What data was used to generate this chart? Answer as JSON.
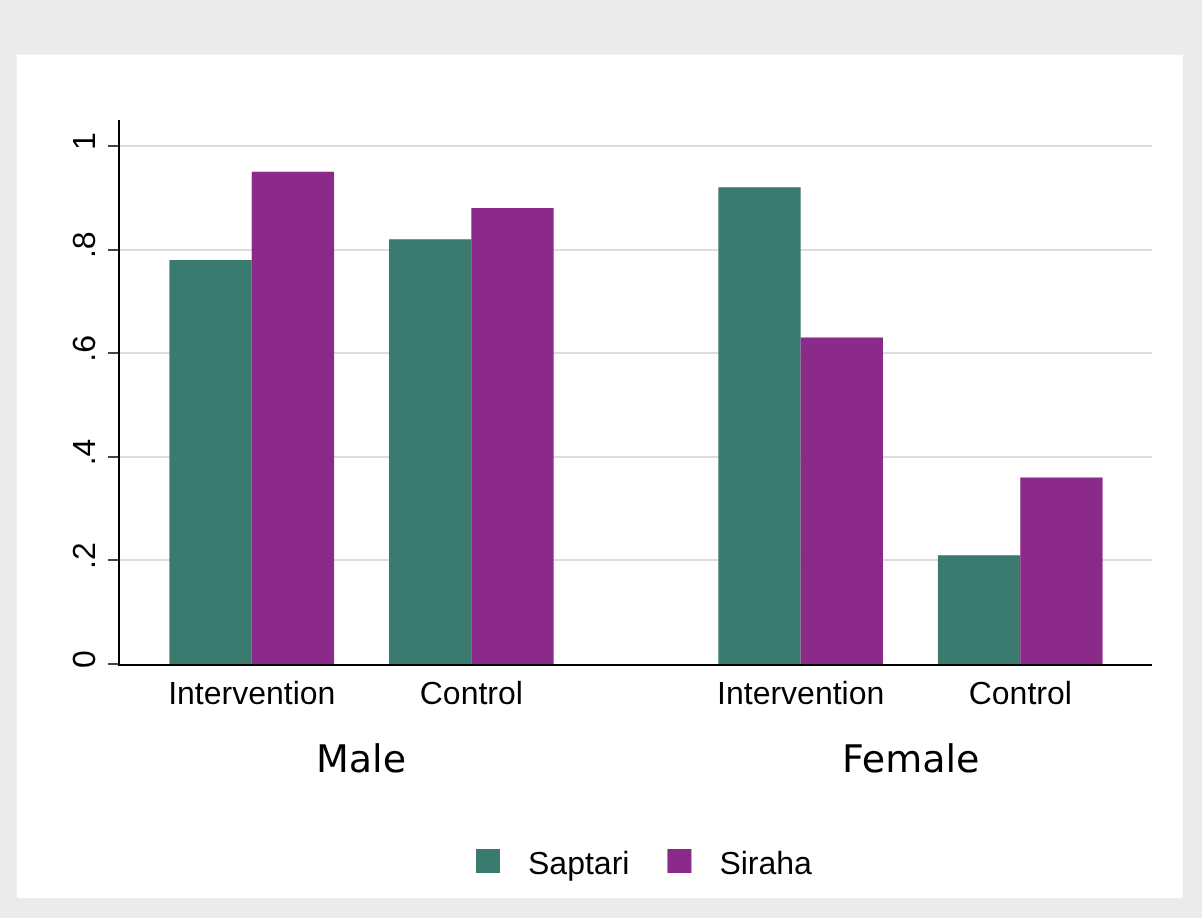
{
  "chart_data": {
    "type": "bar",
    "categories": [
      "Intervention",
      "Control",
      "Intervention",
      "Control"
    ],
    "series": [
      {
        "name": "Saptari",
        "color": "#3b7a6f",
        "values": [
          0.78,
          0.82,
          0.92,
          0.21
        ]
      },
      {
        "name": "Siraha",
        "color": "#8b2a88",
        "values": [
          0.95,
          0.88,
          0.63,
          0.36
        ]
      }
    ],
    "annotations": [
      "Male",
      "Female"
    ],
    "ylim": [
      0,
      1.05
    ],
    "yticks": [
      0,
      {
        "value": 0.2,
        "label": ".2"
      },
      {
        "value": 0.4,
        "label": ".4"
      },
      {
        "value": 0.6,
        "label": ".6"
      },
      {
        "value": 0.8,
        "label": ".8"
      },
      1
    ],
    "grid": "y",
    "legend": "bottom"
  }
}
